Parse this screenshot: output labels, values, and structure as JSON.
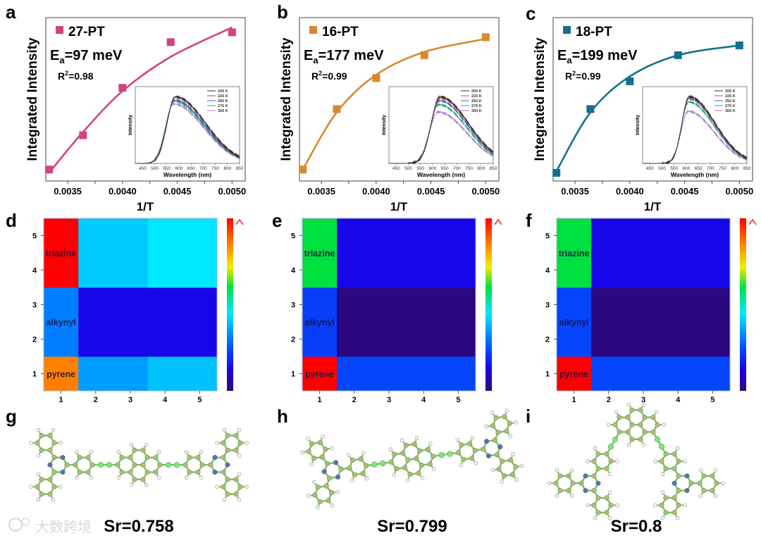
{
  "panel_letters": [
    "a",
    "b",
    "c",
    "d",
    "e",
    "f",
    "g",
    "h",
    "i"
  ],
  "chart_data": [
    {
      "type": "scatter",
      "panel": "a",
      "series_name": "27-PT",
      "color": "#d1447f",
      "ea": {
        "symbol": "E",
        "sub": "a",
        "value": "=97 meV"
      },
      "r2": {
        "symbol": "R",
        "sup": "2",
        "value": "=0.98"
      },
      "xlabel": "1/T",
      "ylabel": "Integrated Intensity",
      "xlim": [
        0.0033,
        0.00512
      ],
      "ylim": [
        0,
        1
      ],
      "xticks": [
        "0.0035",
        "0.0040",
        "0.0045",
        "0.0050"
      ],
      "x": [
        0.00333,
        0.00364,
        0.004,
        0.00444,
        0.005
      ],
      "y": [
        0.07,
        0.28,
        0.57,
        0.85,
        0.91
      ],
      "fit_y": [
        0.05,
        0.3,
        0.55,
        0.76,
        0.94
      ],
      "inset": {
        "type": "line",
        "xlabel": "Wavelength (nm)",
        "ylabel": "Intensity",
        "xlim": [
          420,
          850
        ],
        "xticks": [
          "450",
          "500",
          "550",
          "600",
          "650",
          "700",
          "750",
          "800",
          "850"
        ],
        "series": [
          {
            "name": "200 K",
            "color": "#333333",
            "peak_nm": 585,
            "relative_max": 1.0
          },
          {
            "name": "225 K",
            "color": "#e03a3a",
            "peak_nm": 585,
            "relative_max": 0.99
          },
          {
            "name": "250 K",
            "color": "#2a6fc0",
            "peak_nm": 582,
            "relative_max": 0.95
          },
          {
            "name": "275 K",
            "color": "#2ea36a",
            "peak_nm": 580,
            "relative_max": 0.93
          },
          {
            "name": "300 K",
            "color": "#a97ed6",
            "peak_nm": 578,
            "relative_max": 0.89
          }
        ]
      }
    },
    {
      "type": "scatter",
      "panel": "b",
      "series_name": "16-PT",
      "color": "#d9892d",
      "ea": {
        "symbol": "E",
        "sub": "a",
        "value": "=177 meV"
      },
      "r2": {
        "symbol": "R",
        "sup": "2",
        "value": "=0.99"
      },
      "xlabel": "1/T",
      "ylabel": "Integrated Intensity",
      "xlim": [
        0.0033,
        0.00512
      ],
      "ylim": [
        0,
        1
      ],
      "xticks": [
        "0.0035",
        "0.0040",
        "0.0045",
        "0.0050"
      ],
      "x": [
        0.00333,
        0.00364,
        0.004,
        0.00444,
        0.005
      ],
      "y": [
        0.07,
        0.44,
        0.63,
        0.77,
        0.88
      ],
      "fit_y": [
        0.07,
        0.42,
        0.65,
        0.79,
        0.87
      ],
      "inset": {
        "type": "line",
        "xlabel": "Wavelength (nm)",
        "ylabel": "Intensity",
        "xlim": [
          420,
          850
        ],
        "xticks": [
          "450",
          "500",
          "550",
          "600",
          "650",
          "700",
          "750",
          "800",
          "850"
        ],
        "series": [
          {
            "name": "200 K",
            "color": "#333333",
            "peak_nm": 630,
            "relative_max": 1.0
          },
          {
            "name": "225 K",
            "color": "#e03a3a",
            "peak_nm": 630,
            "relative_max": 0.98
          },
          {
            "name": "250 K",
            "color": "#2a6fc0",
            "peak_nm": 628,
            "relative_max": 0.94
          },
          {
            "name": "275 K",
            "color": "#2ea36a",
            "peak_nm": 625,
            "relative_max": 0.88
          },
          {
            "name": "300 K",
            "color": "#a97ed6",
            "peak_nm": 622,
            "relative_max": 0.77
          }
        ]
      }
    },
    {
      "type": "scatter",
      "panel": "c",
      "series_name": "18-PT",
      "color": "#14708f",
      "ea": {
        "symbol": "E",
        "sub": "a",
        "value": "=199 meV"
      },
      "r2": {
        "symbol": "R",
        "sup": "2",
        "value": "=0.99"
      },
      "xlabel": "1/T",
      "ylabel": "Integrated Intensity",
      "xlim": [
        0.0033,
        0.00512
      ],
      "ylim": [
        0,
        1
      ],
      "xticks": [
        "0.0035",
        "0.0040",
        "0.0045",
        "0.0050"
      ],
      "x": [
        0.00333,
        0.00364,
        0.004,
        0.00444,
        0.005
      ],
      "y": [
        0.05,
        0.44,
        0.61,
        0.77,
        0.83
      ],
      "fit_y": [
        0.06,
        0.42,
        0.64,
        0.77,
        0.83
      ],
      "inset": {
        "type": "line",
        "xlabel": "Wavelength (nm)",
        "ylabel": "Intensity",
        "xlim": [
          420,
          850
        ],
        "xticks": [
          "450",
          "500",
          "550",
          "600",
          "650",
          "700",
          "750",
          "800",
          "850"
        ],
        "series": [
          {
            "name": "200 K",
            "color": "#333333",
            "peak_nm": 612,
            "relative_max": 1.0
          },
          {
            "name": "225 K",
            "color": "#e03a3a",
            "peak_nm": 612,
            "relative_max": 0.99
          },
          {
            "name": "250 K",
            "color": "#2a6fc0",
            "peak_nm": 611,
            "relative_max": 0.97
          },
          {
            "name": "275 K",
            "color": "#2ea36a",
            "peak_nm": 610,
            "relative_max": 0.92
          },
          {
            "name": "300 K",
            "color": "#a97ed6",
            "peak_nm": 608,
            "relative_max": 0.78
          }
        ]
      }
    },
    {
      "type": "heatmap",
      "panel": "d",
      "xticks": [
        "1",
        "2",
        "3",
        "4",
        "5"
      ],
      "yticks": [
        "1",
        "2",
        "3",
        "4",
        "5"
      ],
      "values": [
        [
          0.85,
          0.35,
          0.35,
          0.4,
          0.4
        ],
        [
          0.31,
          0.13,
          0.13,
          0.13,
          0.13
        ],
        [
          0.31,
          0.13,
          0.13,
          0.13,
          0.13
        ],
        [
          1.0,
          0.41,
          0.41,
          0.45,
          0.45
        ],
        [
          1.0,
          0.41,
          0.41,
          0.45,
          0.45
        ]
      ],
      "row_labels": [
        {
          "text": "pyrene",
          "y": 1
        },
        {
          "text": "alkynyl",
          "y": 2.5
        },
        {
          "text": "triazine",
          "y": 4.5
        }
      ],
      "colorbar": {
        "range": [
          0,
          1
        ],
        "arrow": "increasing"
      }
    },
    {
      "type": "heatmap",
      "panel": "e",
      "xticks": [
        "1",
        "2",
        "3",
        "4",
        "5"
      ],
      "yticks": [
        "1",
        "2",
        "3",
        "4",
        "5"
      ],
      "values": [
        [
          1.0,
          0.23,
          0.23,
          0.23,
          0.23
        ],
        [
          0.22,
          0.02,
          0.02,
          0.02,
          0.02
        ],
        [
          0.22,
          0.02,
          0.02,
          0.02,
          0.02
        ],
        [
          0.6,
          0.13,
          0.13,
          0.13,
          0.13
        ],
        [
          0.6,
          0.13,
          0.13,
          0.13,
          0.13
        ]
      ],
      "row_labels": [
        {
          "text": "pyrene",
          "y": 1
        },
        {
          "text": "alkynyl",
          "y": 2.5
        },
        {
          "text": "triazine",
          "y": 4.5
        }
      ],
      "colorbar": {
        "range": [
          0,
          1
        ],
        "arrow": "increasing"
      }
    },
    {
      "type": "heatmap",
      "panel": "f",
      "xticks": [
        "1",
        "2",
        "3",
        "4",
        "5"
      ],
      "yticks": [
        "1",
        "2",
        "3",
        "4",
        "5"
      ],
      "values": [
        [
          1.0,
          0.23,
          0.23,
          0.23,
          0.23
        ],
        [
          0.23,
          0.02,
          0.02,
          0.02,
          0.02
        ],
        [
          0.23,
          0.02,
          0.02,
          0.02,
          0.02
        ],
        [
          0.6,
          0.13,
          0.13,
          0.13,
          0.13
        ],
        [
          0.6,
          0.13,
          0.13,
          0.13,
          0.13
        ]
      ],
      "row_labels": [
        {
          "text": "pyrene",
          "y": 1
        },
        {
          "text": "alkynyl",
          "y": 2.5
        },
        {
          "text": "triazine",
          "y": 4.5
        }
      ],
      "colorbar": {
        "range": [
          0,
          1
        ],
        "arrow": "increasing"
      }
    }
  ],
  "structures": [
    {
      "panel": "g",
      "label": "Sr=0.758"
    },
    {
      "panel": "h",
      "label": "Sr=0.799"
    },
    {
      "panel": "i",
      "label": "Sr=0.8"
    }
  ],
  "watermark": "大数跨境"
}
